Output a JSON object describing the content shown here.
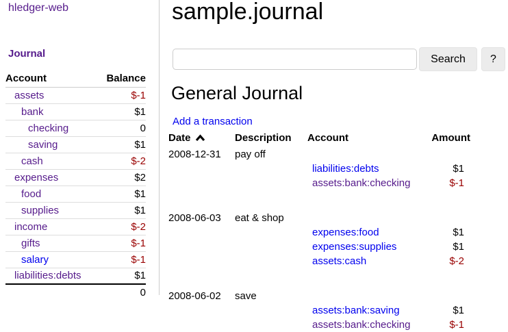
{
  "app": {
    "title": "hledger-web"
  },
  "colors": {
    "link_blue": "#0000ee",
    "link_visited_purple": "#551a8b",
    "negative_red": "#990000",
    "divider_gray": "#cccccc",
    "button_gray": "#ececec"
  },
  "sidebar": {
    "journal_label": "Journal",
    "accounts_table": {
      "headers": {
        "account": "Account",
        "balance": "Balance"
      },
      "rows": [
        {
          "name": "assets",
          "balance": "$-1",
          "indent": 0,
          "negative": true,
          "visited": true
        },
        {
          "name": "bank",
          "balance": "$1",
          "indent": 1,
          "negative": false,
          "visited": true
        },
        {
          "name": "checking",
          "balance": "0",
          "indent": 2,
          "negative": false,
          "visited": true
        },
        {
          "name": "saving",
          "balance": "$1",
          "indent": 2,
          "negative": false,
          "visited": true
        },
        {
          "name": "cash",
          "balance": "$-2",
          "indent": 1,
          "negative": true,
          "visited": true
        },
        {
          "name": "expenses",
          "balance": "$2",
          "indent": 0,
          "negative": false,
          "visited": true
        },
        {
          "name": "food",
          "balance": "$1",
          "indent": 1,
          "negative": false,
          "visited": true
        },
        {
          "name": "supplies",
          "balance": "$1",
          "indent": 1,
          "negative": false,
          "visited": true
        },
        {
          "name": "income",
          "balance": "$-2",
          "indent": 0,
          "negative": true,
          "visited": true
        },
        {
          "name": "gifts",
          "balance": "$-1",
          "indent": 1,
          "negative": true,
          "visited": true
        },
        {
          "name": "salary",
          "balance": "$-1",
          "indent": 1,
          "negative": true,
          "visited": false
        },
        {
          "name": "liabilities:debts",
          "balance": "$1",
          "indent": 0,
          "negative": false,
          "visited": true
        }
      ],
      "total": "0"
    }
  },
  "main": {
    "page_title": "sample.journal",
    "search": {
      "value": "",
      "placeholder": "",
      "button_label": "Search",
      "help_label": "?"
    },
    "section_title": "General Journal",
    "add_transaction_label": "Add a transaction",
    "journal_table": {
      "headers": {
        "date": "Date",
        "description": "Description",
        "account": "Account",
        "amount": "Amount"
      },
      "sort": {
        "column": "date",
        "direction": "ascending",
        "icon": "chevron-up-icon"
      },
      "transactions": [
        {
          "date": "2008-12-31",
          "description": "pay off",
          "postings": [
            {
              "account": "liabilities:debts",
              "amount": "$1",
              "negative": false,
              "visited": false
            },
            {
              "account": "assets:bank:checking",
              "amount": "$-1",
              "negative": true,
              "visited": true
            }
          ]
        },
        {
          "date": "2008-06-03",
          "description": "eat & shop",
          "postings": [
            {
              "account": "expenses:food",
              "amount": "$1",
              "negative": false,
              "visited": false
            },
            {
              "account": "expenses:supplies",
              "amount": "$1",
              "negative": false,
              "visited": false
            },
            {
              "account": "assets:cash",
              "amount": "$-2",
              "negative": true,
              "visited": false
            }
          ]
        },
        {
          "date": "2008-06-02",
          "description": "save",
          "postings": [
            {
              "account": "assets:bank:saving",
              "amount": "$1",
              "negative": false,
              "visited": false
            },
            {
              "account": "assets:bank:checking",
              "amount": "$-1",
              "negative": true,
              "visited": true
            }
          ]
        }
      ]
    }
  }
}
